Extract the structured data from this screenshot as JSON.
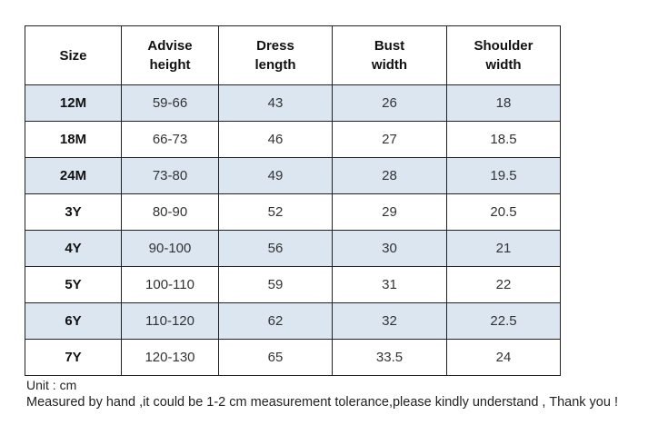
{
  "headers": [
    [
      "Size"
    ],
    [
      "Advise",
      "height"
    ],
    [
      "Dress",
      "length"
    ],
    [
      "Bust",
      "width"
    ],
    [
      "Shoulder",
      "width"
    ]
  ],
  "rows": [
    [
      "12M",
      "59-66",
      "43",
      "26",
      "18"
    ],
    [
      "18M",
      "66-73",
      "46",
      "27",
      "18.5"
    ],
    [
      "24M",
      "73-80",
      "49",
      "28",
      "19.5"
    ],
    [
      "3Y",
      "80-90",
      "52",
      "29",
      "20.5"
    ],
    [
      "4Y",
      "90-100",
      "56",
      "30",
      "21"
    ],
    [
      "5Y",
      "100-110",
      "59",
      "31",
      "22"
    ],
    [
      "6Y",
      "110-120",
      "62",
      "32",
      "22.5"
    ],
    [
      "7Y",
      "120-130",
      "65",
      "33.5",
      "24"
    ]
  ],
  "row_shading": [
    "shaded",
    "plain",
    "shaded",
    "plain",
    "shaded",
    "plain",
    "shaded",
    "plain"
  ],
  "notes": {
    "unit": "Unit : cm",
    "measurement": "Measured by hand ,it could be 1-2 cm measurement tolerance,please kindly understand , Thank you !"
  },
  "colors": {
    "shaded_row": "#dce6f0",
    "border": "#222222"
  }
}
